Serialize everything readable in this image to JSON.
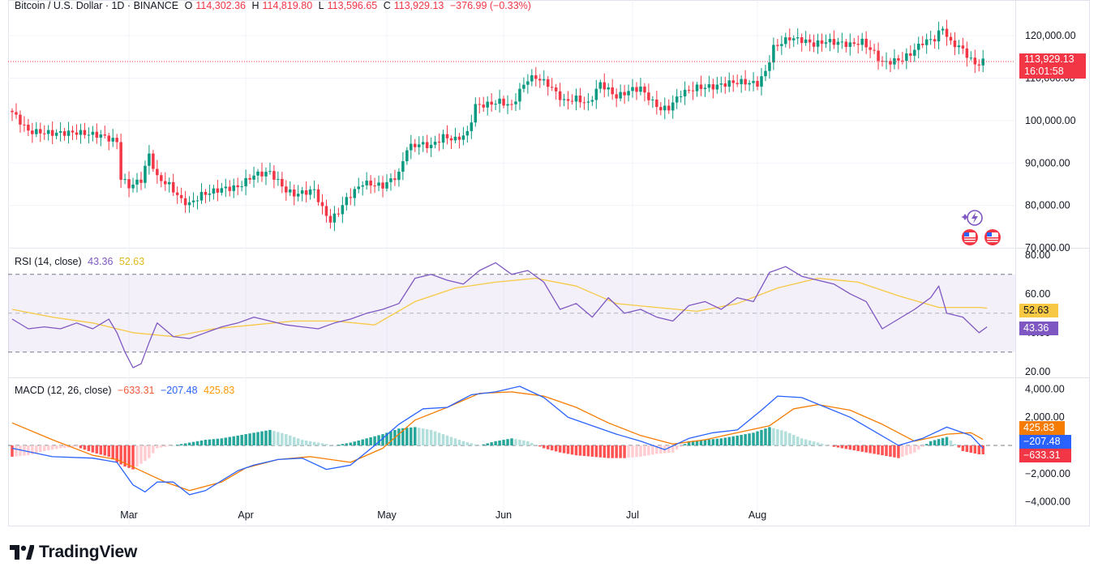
{
  "header": {
    "symbol": "Bitcoin / U.S. Dollar · 1D · BINANCE",
    "open_label": "O",
    "open": "114,302.36",
    "high_label": "H",
    "high": "114,819.80",
    "low_label": "L",
    "low": "113,596.65",
    "close_label": "C",
    "close": "113,929.13",
    "change": "−376.99 (−0.33%)"
  },
  "price_tag": {
    "value": "113,929.13",
    "countdown": "16:01:58"
  },
  "rsi_legend": {
    "title": "RSI (14, close)",
    "rsi": "43.36",
    "ma": "52.63"
  },
  "macd_legend": {
    "title": "MACD (12, 26, close)",
    "hist": "−633.31",
    "macd": "−207.48",
    "signal": "425.83"
  },
  "macd_tags": {
    "signal": "425.83",
    "macd": "−207.48",
    "hist": "−633.31"
  },
  "rsi_tags": {
    "ma": "52.63",
    "rsi": "43.36"
  },
  "brand": {
    "name": "TradingView"
  },
  "colors": {
    "up": "#089981",
    "down": "#f23645",
    "rsi": "#7e57c2",
    "rsi_ma": "#f7c843",
    "macd": "#2962ff",
    "signal": "#f57c00"
  },
  "chart_data": [
    {
      "type": "candlestick",
      "title": "Bitcoin / U.S. Dollar · 1D · BINANCE",
      "x_tick_labels": [
        "Mar",
        "Apr",
        "May",
        "Jun",
        "Jul",
        "Aug"
      ],
      "y_tick_labels": [
        "120,000.00",
        "110,000.00",
        "100,000.00",
        "90,000.00",
        "80,000.00",
        "70,000.00"
      ],
      "ylim": [
        70000,
        125000
      ],
      "last_price": 113929.13,
      "close_path": [
        [
          0,
          102000
        ],
        [
          4,
          97500
        ],
        [
          10,
          97000
        ],
        [
          16,
          97200
        ],
        [
          22,
          96500
        ],
        [
          26,
          95000
        ],
        [
          27,
          86500
        ],
        [
          29,
          84500
        ],
        [
          32,
          86000
        ],
        [
          34,
          92000
        ],
        [
          36,
          86500
        ],
        [
          39,
          84800
        ],
        [
          42,
          81200
        ],
        [
          44,
          80300
        ],
        [
          47,
          82500
        ],
        [
          52,
          83900
        ],
        [
          56,
          84300
        ],
        [
          60,
          87200
        ],
        [
          64,
          87800
        ],
        [
          68,
          83500
        ],
        [
          70,
          82600
        ],
        [
          75,
          83600
        ],
        [
          77,
          79200
        ],
        [
          79,
          76300
        ],
        [
          81,
          78500
        ],
        [
          83,
          81500
        ],
        [
          87,
          85300
        ],
        [
          92,
          84600
        ],
        [
          96,
          87400
        ],
        [
          98,
          93500
        ],
        [
          101,
          94500
        ],
        [
          104,
          94000
        ],
        [
          107,
          96200
        ],
        [
          110,
          95500
        ],
        [
          113,
          97000
        ],
        [
          115,
          103500
        ],
        [
          118,
          103800
        ],
        [
          121,
          104500
        ],
        [
          124,
          103400
        ],
        [
          126,
          107000
        ],
        [
          128,
          109800
        ],
        [
          130,
          110200
        ],
        [
          133,
          108600
        ],
        [
          137,
          104500
        ],
        [
          140,
          105200
        ],
        [
          143,
          103900
        ],
        [
          146,
          108800
        ],
        [
          150,
          105600
        ],
        [
          154,
          107400
        ],
        [
          156,
          107600
        ],
        [
          159,
          104300
        ],
        [
          161,
          102700
        ],
        [
          163,
          103000
        ],
        [
          166,
          106400
        ],
        [
          170,
          107800
        ],
        [
          174,
          108000
        ],
        [
          178,
          108900
        ],
        [
          181,
          109100
        ],
        [
          185,
          108700
        ],
        [
          187,
          111500
        ],
        [
          189,
          117200
        ],
        [
          191,
          118400
        ],
        [
          193,
          119500
        ],
        [
          196,
          119000
        ],
        [
          199,
          118000
        ],
        [
          202,
          118700
        ],
        [
          205,
          118400
        ],
        [
          208,
          117900
        ],
        [
          211,
          118600
        ],
        [
          214,
          115900
        ],
        [
          216,
          113600
        ],
        [
          218,
          113900
        ],
        [
          221,
          114500
        ],
        [
          223,
          115800
        ],
        [
          226,
          118500
        ],
        [
          229,
          119300
        ],
        [
          231,
          121900
        ],
        [
          233,
          118200
        ],
        [
          235,
          117600
        ],
        [
          237,
          115500
        ],
        [
          239,
          113200
        ],
        [
          241,
          113929
        ]
      ]
    },
    {
      "type": "line",
      "title": "RSI (14, close)",
      "y_tick_labels": [
        "80.00",
        "60.00",
        "40.00",
        "20.00"
      ],
      "ylim": [
        17,
        82
      ],
      "bands": [
        30,
        50,
        70
      ],
      "last_values": {
        "rsi": 43.36,
        "rsi_ma": 52.63
      },
      "series": [
        {
          "name": "RSI",
          "x": [
            0,
            4,
            8,
            12,
            16,
            20,
            24,
            26,
            28,
            30,
            32,
            34,
            36,
            40,
            44,
            48,
            52,
            56,
            60,
            64,
            68,
            72,
            76,
            80,
            84,
            88,
            92,
            96,
            100,
            104,
            108,
            112,
            116,
            120,
            124,
            128,
            132,
            136,
            140,
            144,
            148,
            152,
            156,
            160,
            164,
            168,
            172,
            176,
            180,
            184,
            188,
            192,
            196,
            200,
            204,
            208,
            212,
            216,
            220,
            224,
            228,
            230,
            232,
            236,
            240,
            242
          ],
          "values": [
            47,
            42,
            43,
            42,
            45,
            42,
            47,
            40,
            30,
            22,
            24,
            35,
            45,
            38,
            37,
            40,
            43,
            45,
            48,
            46,
            44,
            43,
            42,
            45,
            47,
            50,
            52,
            55,
            68,
            70,
            67,
            65,
            72,
            76,
            70,
            72,
            66,
            52,
            55,
            48,
            58,
            50,
            52,
            48,
            46,
            54,
            56,
            52,
            58,
            56,
            71,
            74,
            69,
            67,
            65,
            60,
            56,
            42,
            47,
            52,
            58,
            64,
            50,
            48,
            40,
            43
          ]
        },
        {
          "name": "RSI-based MA",
          "x": [
            0,
            10,
            20,
            30,
            40,
            50,
            60,
            70,
            80,
            90,
            100,
            110,
            120,
            130,
            140,
            150,
            160,
            170,
            180,
            190,
            200,
            210,
            220,
            230,
            240,
            242
          ],
          "values": [
            52,
            48,
            45,
            40,
            38,
            42,
            44,
            46,
            46,
            44,
            56,
            63,
            66,
            68,
            64,
            55,
            53,
            51,
            55,
            63,
            68,
            66,
            59,
            53,
            53,
            52.63
          ]
        }
      ]
    },
    {
      "type": "bar+line",
      "title": "MACD (12, 26, close)",
      "y_tick_labels": [
        "4,000.00",
        "2,000.00",
        "0",
        "−2,000.00",
        "−4,000.00"
      ],
      "ylim": [
        -4600,
        4600
      ],
      "last_values": {
        "histogram": -633.31,
        "macd": -207.48,
        "signal": 425.83
      },
      "series": [
        {
          "name": "MACD",
          "x": [
            0,
            10,
            20,
            26,
            30,
            33,
            36,
            40,
            44,
            48,
            52,
            56,
            60,
            66,
            72,
            78,
            84,
            90,
            96,
            102,
            108,
            114,
            120,
            126,
            132,
            138,
            144,
            150,
            156,
            162,
            168,
            174,
            180,
            186,
            190,
            196,
            202,
            208,
            214,
            220,
            226,
            232,
            238,
            241
          ],
          "values": [
            -200,
            -800,
            -900,
            -1200,
            -2800,
            -3300,
            -2600,
            -2600,
            -3500,
            -3200,
            -2500,
            -1800,
            -1400,
            -1000,
            -900,
            -1700,
            -1400,
            0,
            1500,
            2600,
            2700,
            3600,
            3800,
            4200,
            3400,
            2000,
            1400,
            800,
            300,
            -300,
            500,
            900,
            1100,
            2500,
            3500,
            3400,
            2700,
            2000,
            1000,
            0,
            500,
            1300,
            700,
            -207
          ]
        },
        {
          "name": "Signal",
          "x": [
            0,
            10,
            20,
            26,
            32,
            38,
            44,
            52,
            58,
            66,
            74,
            84,
            92,
            100,
            108,
            116,
            124,
            132,
            140,
            148,
            156,
            164,
            172,
            180,
            188,
            194,
            200,
            208,
            216,
            224,
            232,
            238,
            241
          ],
          "values": [
            1600,
            400,
            -700,
            -1000,
            -1800,
            -2600,
            -3200,
            -2600,
            -1600,
            -1000,
            -800,
            -1200,
            -200,
            1800,
            2700,
            3700,
            3800,
            3500,
            2700,
            1600,
            700,
            100,
            400,
            900,
            1400,
            2600,
            2900,
            2500,
            1500,
            300,
            800,
            900,
            426
          ]
        },
        {
          "name": "Histogram",
          "x": [
            0,
            4,
            8,
            12,
            16,
            20,
            24,
            26,
            28,
            30,
            32,
            34,
            36,
            40,
            44,
            48,
            52,
            56,
            60,
            64,
            68,
            72,
            76,
            80,
            84,
            88,
            92,
            96,
            100,
            104,
            108,
            112,
            116,
            120,
            124,
            128,
            132,
            136,
            140,
            144,
            148,
            152,
            156,
            160,
            164,
            168,
            172,
            176,
            180,
            184,
            188,
            192,
            196,
            200,
            204,
            208,
            212,
            216,
            220,
            224,
            228,
            232,
            236,
            240
          ],
          "values": [
            -800,
            -700,
            -400,
            -200,
            -100,
            -500,
            -800,
            -1200,
            -1500,
            -1700,
            -1300,
            -900,
            -200,
            0,
            200,
            400,
            500,
            700,
            900,
            1100,
            800,
            400,
            200,
            0,
            200,
            500,
            800,
            1200,
            1300,
            1100,
            700,
            300,
            0,
            300,
            500,
            300,
            -200,
            -500,
            -700,
            -800,
            -900,
            -900,
            -800,
            -600,
            -500,
            300,
            400,
            500,
            700,
            900,
            1300,
            1000,
            500,
            200,
            -100,
            -300,
            -500,
            -700,
            -900,
            -500,
            300,
            600,
            -400,
            -633
          ]
        }
      ]
    }
  ]
}
